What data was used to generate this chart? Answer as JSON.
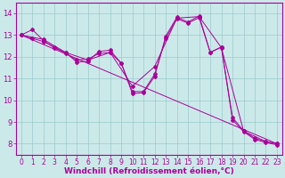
{
  "background_color": "#cce9e9",
  "line_color": "#aa0099",
  "grid_color": "#99cccc",
  "xlabel": "Windchill (Refroidissement éolien,°C)",
  "xlabel_fontsize": 6.5,
  "xtick_fontsize": 5.5,
  "ytick_fontsize": 6.0,
  "xlim": [
    -0.5,
    23.5
  ],
  "ylim": [
    7.5,
    14.5
  ],
  "yticks": [
    8,
    9,
    10,
    11,
    12,
    13,
    14
  ],
  "xticks": [
    0,
    1,
    2,
    3,
    4,
    5,
    6,
    7,
    8,
    9,
    10,
    11,
    12,
    13,
    14,
    15,
    16,
    17,
    18,
    19,
    20,
    21,
    22,
    23
  ],
  "line1_x": [
    0,
    1,
    2,
    3,
    4,
    5,
    6,
    7,
    8,
    9,
    10,
    11,
    12,
    13,
    14,
    15,
    16,
    17,
    18,
    19,
    20,
    21,
    22,
    23
  ],
  "line1_y": [
    13.0,
    12.85,
    12.7,
    12.45,
    12.15,
    11.85,
    11.9,
    12.15,
    12.2,
    11.7,
    10.4,
    10.4,
    11.2,
    12.85,
    13.75,
    13.55,
    13.8,
    12.2,
    12.45,
    9.1,
    8.55,
    8.2,
    8.05,
    7.95
  ],
  "line2_x": [
    0,
    1,
    2,
    3,
    4,
    5,
    6,
    7,
    8,
    9,
    10,
    11,
    12,
    13,
    14,
    15,
    16,
    17,
    18,
    19,
    20,
    21,
    22,
    23
  ],
  "line2_y": [
    13.0,
    13.25,
    12.75,
    12.4,
    12.2,
    11.75,
    11.8,
    12.25,
    12.3,
    11.7,
    10.3,
    10.35,
    11.1,
    12.95,
    13.82,
    13.6,
    13.88,
    12.2,
    12.45,
    9.2,
    8.6,
    8.25,
    8.1,
    8.0
  ],
  "line3_x": [
    0,
    2,
    4,
    6,
    8,
    10,
    12,
    14,
    16,
    18,
    20,
    22,
    23
  ],
  "line3_y": [
    13.0,
    12.8,
    12.2,
    11.85,
    12.2,
    10.65,
    11.55,
    13.78,
    13.85,
    12.42,
    8.58,
    8.1,
    8.0
  ],
  "line4_x": [
    0,
    23
  ],
  "line4_y": [
    13.0,
    8.0
  ]
}
